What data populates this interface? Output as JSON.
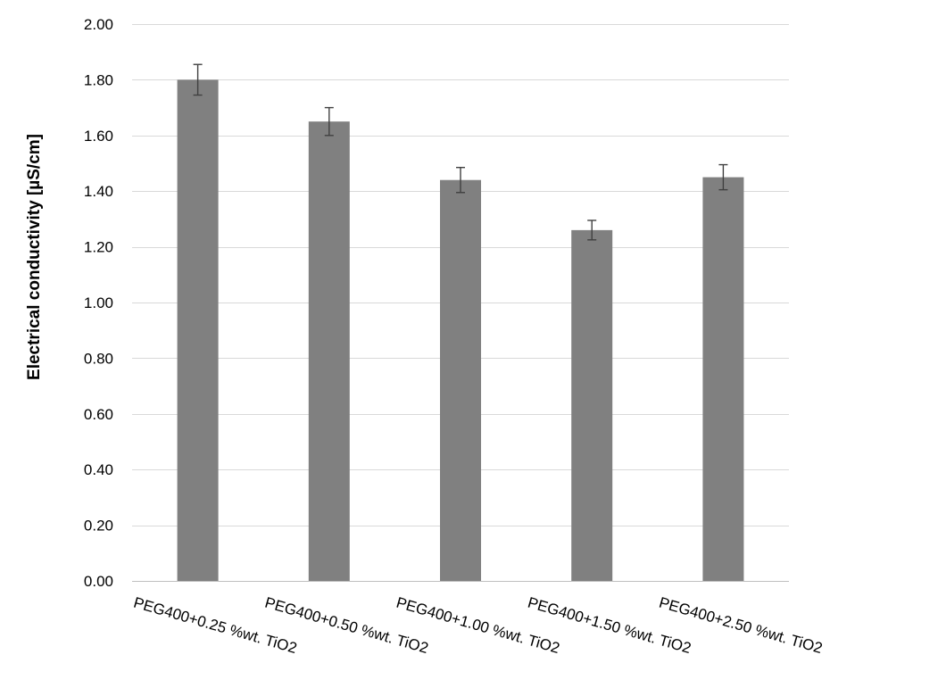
{
  "chart_data": {
    "type": "bar",
    "title": "",
    "xlabel": "",
    "ylabel": "Electrical conductivity [µS/cm]",
    "categories": [
      "PEG400+0.25 %wt. TiO2",
      "PEG400+0.50 %wt. TiO2",
      "PEG400+1.00 %wt. TiO2",
      "PEG400+1.50 %wt. TiO2",
      "PEG400+2.50 %wt. TiO2"
    ],
    "values": [
      1.8,
      1.65,
      1.44,
      1.26,
      1.45
    ],
    "error": [
      0.055,
      0.05,
      0.045,
      0.035,
      0.045
    ],
    "ylim": [
      0,
      2.0
    ],
    "yticks": [
      "0.00",
      "0.20",
      "0.40",
      "0.60",
      "0.80",
      "1.00",
      "1.20",
      "1.40",
      "1.60",
      "1.80",
      "2.00"
    ],
    "grid": true,
    "legend": "none",
    "colors": {
      "bar": "#808080",
      "error_bar": "#404040",
      "grid": "#d9d9d9"
    }
  }
}
